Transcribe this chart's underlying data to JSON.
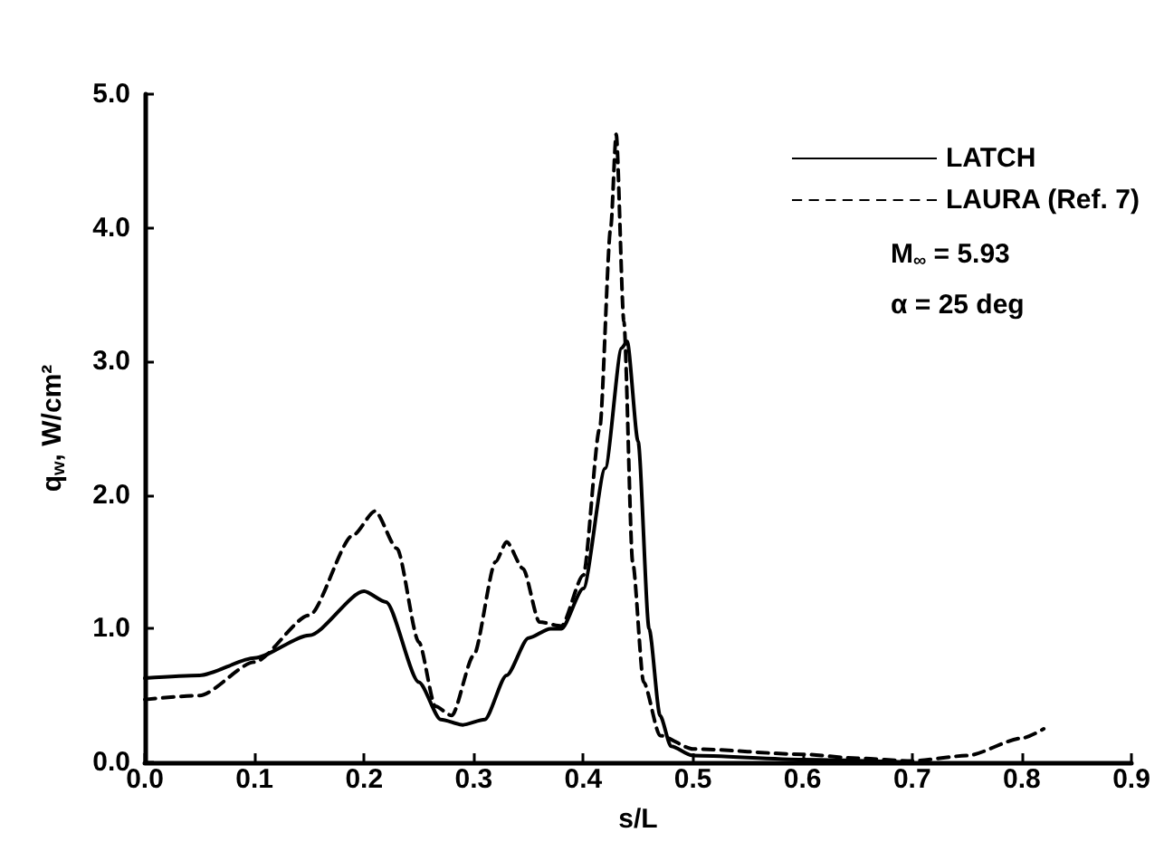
{
  "chart_data": {
    "type": "line",
    "xlabel": "s/L",
    "ylabel": "q$_{w}$, W/cm²",
    "xlim": [
      0,
      0.9
    ],
    "xticks": [
      {
        "value": 0,
        "label": "0.0"
      },
      {
        "value": 0.1,
        "label": "0.1"
      },
      {
        "value": 0.2,
        "label": "0.2"
      },
      {
        "value": 0.3,
        "label": "0.3"
      },
      {
        "value": 0.4,
        "label": "0.4"
      },
      {
        "value": 0.5,
        "label": "0.5"
      },
      {
        "value": 0.6,
        "label": "0.6"
      },
      {
        "value": 0.7,
        "label": "0.7"
      },
      {
        "value": 0.8,
        "label": "0.8"
      },
      {
        "value": 0.9,
        "label": "0.9"
      }
    ],
    "ylim": [
      0,
      5
    ],
    "yticks": [
      {
        "value": 0,
        "label": "0.0"
      },
      {
        "value": 1,
        "label": "1.0"
      },
      {
        "value": 2,
        "label": "2.0"
      },
      {
        "value": 3,
        "label": "3.0"
      },
      {
        "value": 4,
        "label": "4.0"
      },
      {
        "value": 5,
        "label": "5.0"
      }
    ],
    "grid": false,
    "legend": "top right",
    "marker": "none",
    "annotations": [
      "M$_{∞}$ = 5.93",
      "α = 25 deg"
    ],
    "series": [
      {
        "name": "LATCH",
        "color": "#000000",
        "line_style": "solid",
        "x": [
          0,
          0.05,
          0.1,
          0.15,
          0.2,
          0.22,
          0.25,
          0.27,
          0.29,
          0.31,
          0.33,
          0.35,
          0.37,
          0.38,
          0.4,
          0.42,
          0.435,
          0.44,
          0.45,
          0.46,
          0.47,
          0.48,
          0.5,
          0.6,
          0.7
        ],
        "values": [
          0.63,
          0.65,
          0.78,
          0.95,
          1.28,
          1.2,
          0.6,
          0.32,
          0.28,
          0.32,
          0.65,
          0.93,
          1.0,
          1.0,
          1.3,
          2.2,
          3.1,
          3.15,
          2.4,
          1.0,
          0.35,
          0.12,
          0.05,
          0.02,
          0.0
        ]
      },
      {
        "name": "LAURA (Ref. 7)",
        "color": "#000000",
        "line_style": "dashed",
        "x": [
          0,
          0.05,
          0.1,
          0.15,
          0.19,
          0.21,
          0.23,
          0.25,
          0.265,
          0.28,
          0.3,
          0.32,
          0.33,
          0.345,
          0.36,
          0.38,
          0.4,
          0.415,
          0.425,
          0.43,
          0.437,
          0.445,
          0.455,
          0.47,
          0.5,
          0.6,
          0.65,
          0.7,
          0.75,
          0.8,
          0.82
        ],
        "values": [
          0.47,
          0.5,
          0.75,
          1.1,
          1.7,
          1.88,
          1.6,
          0.9,
          0.42,
          0.35,
          0.8,
          1.5,
          1.65,
          1.45,
          1.05,
          1.02,
          1.4,
          2.5,
          4.0,
          4.7,
          3.3,
          1.5,
          0.6,
          0.2,
          0.1,
          0.06,
          0.03,
          0.01,
          0.05,
          0.18,
          0.25
        ]
      }
    ]
  }
}
